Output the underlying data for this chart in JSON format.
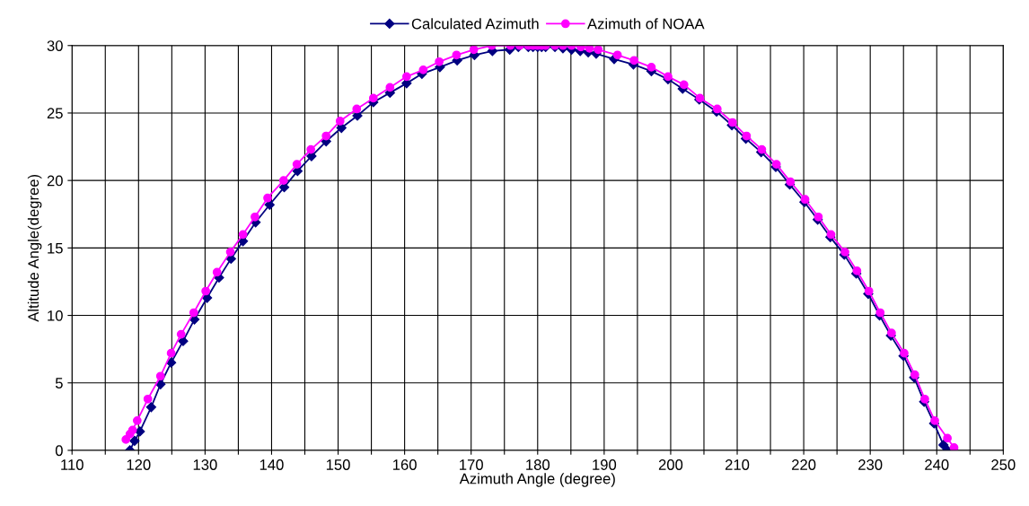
{
  "chart_data": {
    "type": "line",
    "xlabel": "Azimuth Angle (degree)",
    "ylabel": "Altitude Angle(degree)",
    "xlim": [
      110,
      250
    ],
    "ylim": [
      0,
      30
    ],
    "xticks": [
      110,
      {
        "value": 115,
        "label": null
      },
      120,
      {
        "value": 125,
        "label": null
      },
      130,
      {
        "value": 135,
        "label": null
      },
      140,
      {
        "value": 145,
        "label": null
      },
      150,
      {
        "value": 155,
        "label": null
      },
      160,
      {
        "value": 165,
        "label": null
      },
      170,
      {
        "value": 175,
        "label": null
      },
      180,
      {
        "value": 185,
        "label": null
      },
      190,
      {
        "value": 195,
        "label": null
      },
      200,
      {
        "value": 205,
        "label": null
      },
      210,
      {
        "value": 215,
        "label": null
      },
      220,
      {
        "value": 225,
        "label": null
      },
      230,
      {
        "value": 235,
        "label": null
      },
      240,
      {
        "value": 245,
        "label": null
      },
      250
    ],
    "yticks": [
      0,
      5,
      10,
      15,
      20,
      25,
      30
    ],
    "grid": true,
    "legend": "top",
    "line_style": "solid",
    "series": [
      {
        "name": "Calculated Azimuth",
        "color": "#000080",
        "marker": "diamond",
        "x": [
          118.7,
          119.4,
          120.2,
          121.9,
          123.3,
          124.9,
          126.7,
          128.4,
          130.3,
          132.1,
          133.9,
          135.7,
          137.6,
          139.7,
          141.9,
          143.9,
          146.0,
          148.2,
          150.5,
          152.9,
          155.3,
          157.8,
          160.3,
          162.6,
          165.3,
          167.9,
          170.5,
          173.2,
          175.8,
          177.1,
          178.6,
          179.3,
          180.0,
          180.6,
          181.2,
          182.6,
          183.8,
          185.1,
          186.4,
          187.6,
          188.8,
          191.5,
          194.4,
          197.1,
          199.6,
          201.8,
          204.3,
          206.9,
          209.2,
          211.3,
          213.6,
          215.8,
          217.9,
          220.1,
          222.1,
          224.0,
          226.1,
          227.9,
          229.7,
          231.4,
          233.1,
          235.0,
          236.6,
          238.1,
          239.6,
          241.0,
          241.6
        ],
        "values": [
          0,
          0.7,
          1.4,
          3.2,
          4.9,
          6.5,
          8.1,
          9.7,
          11.3,
          12.8,
          14.2,
          15.5,
          16.9,
          18.2,
          19.5,
          20.7,
          21.8,
          22.9,
          23.9,
          24.8,
          25.8,
          26.5,
          27.2,
          27.9,
          28.4,
          28.9,
          29.3,
          29.6,
          29.7,
          29.9,
          29.9,
          29.9,
          29.9,
          29.9,
          29.9,
          29.9,
          29.8,
          29.7,
          29.6,
          29.5,
          29.4,
          29.0,
          28.6,
          28.1,
          27.5,
          26.8,
          26.0,
          25.1,
          24.1,
          23.1,
          22.1,
          21.0,
          19.7,
          18.4,
          17.1,
          15.8,
          14.5,
          13.1,
          11.6,
          10.0,
          8.5,
          7.0,
          5.4,
          3.6,
          2.0,
          0.4,
          0
        ]
      },
      {
        "name": "Azimuth of NOAA",
        "color": "#ff00ff",
        "marker": "circle",
        "x": [
          118.1,
          118.7,
          119.1,
          119.8,
          121.4,
          123.3,
          124.9,
          126.4,
          128.3,
          130.1,
          131.8,
          133.8,
          135.7,
          137.5,
          139.4,
          141.8,
          143.8,
          145.9,
          148.2,
          150.3,
          152.8,
          155.3,
          157.8,
          160.3,
          162.8,
          165.2,
          167.8,
          170.4,
          173.1,
          175.9,
          177.3,
          178.6,
          179.3,
          180.0,
          180.6,
          181.2,
          182.6,
          183.8,
          185.1,
          186.5,
          187.8,
          189.1,
          192.0,
          194.5,
          197.1,
          199.6,
          202.0,
          204.4,
          207.0,
          209.3,
          211.4,
          213.7,
          215.9,
          218.0,
          220.2,
          222.2,
          224.1,
          226.2,
          228.0,
          229.8,
          231.5,
          233.2,
          235.1,
          236.7,
          238.2,
          239.7,
          241.6,
          242.6
        ],
        "values": [
          0.8,
          1.2,
          1.5,
          2.2,
          3.8,
          5.5,
          7.2,
          8.6,
          10.2,
          11.8,
          13.2,
          14.7,
          16.0,
          17.3,
          18.7,
          20.0,
          21.2,
          22.3,
          23.3,
          24.4,
          25.3,
          26.1,
          26.9,
          27.7,
          28.2,
          28.8,
          29.3,
          29.7,
          30.0,
          30.0,
          30.0,
          30.0,
          30.0,
          30.0,
          30.0,
          30.0,
          30.0,
          30.0,
          30.0,
          29.9,
          29.8,
          29.7,
          29.3,
          28.9,
          28.4,
          27.7,
          27.1,
          26.1,
          25.3,
          24.3,
          23.3,
          22.3,
          21.2,
          19.9,
          18.6,
          17.3,
          16.0,
          14.7,
          13.3,
          11.8,
          10.2,
          8.7,
          7.2,
          5.6,
          3.8,
          2.2,
          0.9,
          0.2
        ]
      }
    ]
  }
}
